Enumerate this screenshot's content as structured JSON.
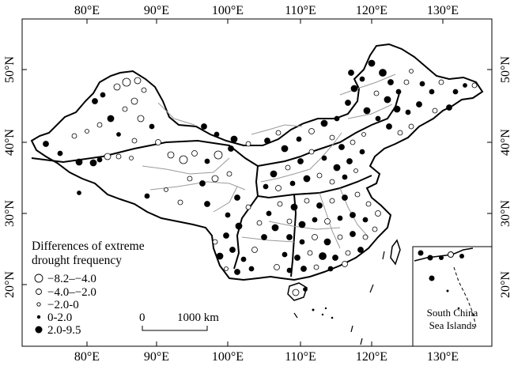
{
  "map": {
    "top_ticks": [
      "80°E",
      "90°E",
      "100°E",
      "110°E",
      "120°E",
      "130°E"
    ],
    "bottom_ticks": [
      "80°E",
      "90°E",
      "100°E",
      "110°E",
      "120°E",
      "130°E"
    ],
    "left_ticks": [
      "50°N",
      "40°N",
      "30°N",
      "20°N"
    ],
    "right_ticks": [
      "50°N",
      "40°N",
      "30°N",
      "20°N"
    ]
  },
  "legend": {
    "title_line1": "Differences of extreme",
    "title_line2": "drought frequency",
    "items": [
      {
        "label": "−8.2–−4.0",
        "symbol": "open-large"
      },
      {
        "label": "−4.0–−2.0",
        "symbol": "open-medium"
      },
      {
        "label": "−2.0-0",
        "symbol": "open-small"
      },
      {
        "label": "0-2.0",
        "symbol": "filled-small"
      },
      {
        "label": "2.0-9.5",
        "symbol": "filled-large"
      }
    ]
  },
  "scale_bar": {
    "start_label": "0",
    "end_label": "1000 km"
  },
  "inset": {
    "label_line1": "South China",
    "label_line2": "Sea Islands"
  }
}
